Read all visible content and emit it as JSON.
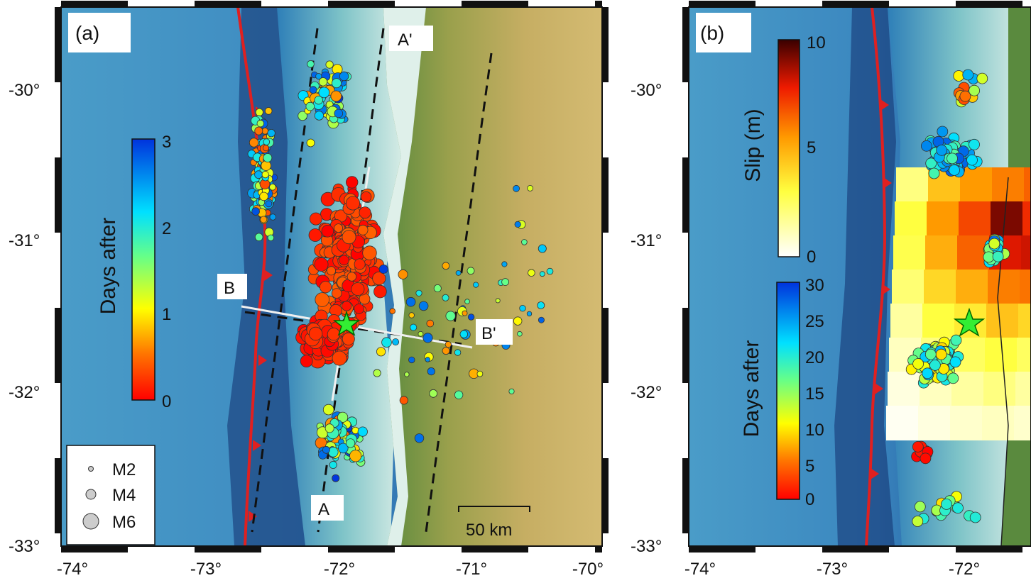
{
  "panel_a": {
    "label": "(a)",
    "x_ticks": [
      "-74°",
      "-73°",
      "-72°",
      "-71°",
      "-70°"
    ],
    "y_ticks": [
      "-30°",
      "-31°",
      "-32°",
      "-33°"
    ],
    "colorbar": {
      "title": "Days after",
      "ticks": [
        "0",
        "1",
        "2",
        "3"
      ]
    },
    "legend": [
      "M2",
      "M4",
      "M6"
    ],
    "profiles": {
      "a": "A",
      "a_prime": "A'",
      "b": "B",
      "b_prime": "B'"
    },
    "scalebar": "50 km"
  },
  "panel_b": {
    "label": "(b)",
    "x_ticks": [
      "-74°",
      "-73°",
      "-72°"
    ],
    "y_ticks": [
      "-30°",
      "-31°",
      "-32°",
      "-33°"
    ],
    "slip_colorbar": {
      "title": "Slip (m)",
      "ticks": [
        "0",
        "5",
        "10"
      ]
    },
    "days_colorbar": {
      "title": "Days after",
      "ticks": [
        "0",
        "5",
        "10",
        "15",
        "20",
        "25",
        "30"
      ]
    }
  },
  "colors": {
    "ocean": "#3f8fc0",
    "trench": "#e02020",
    "land_low": "#5f8a40",
    "land_high": "#c8a862",
    "fault_dash": "#111111"
  }
}
